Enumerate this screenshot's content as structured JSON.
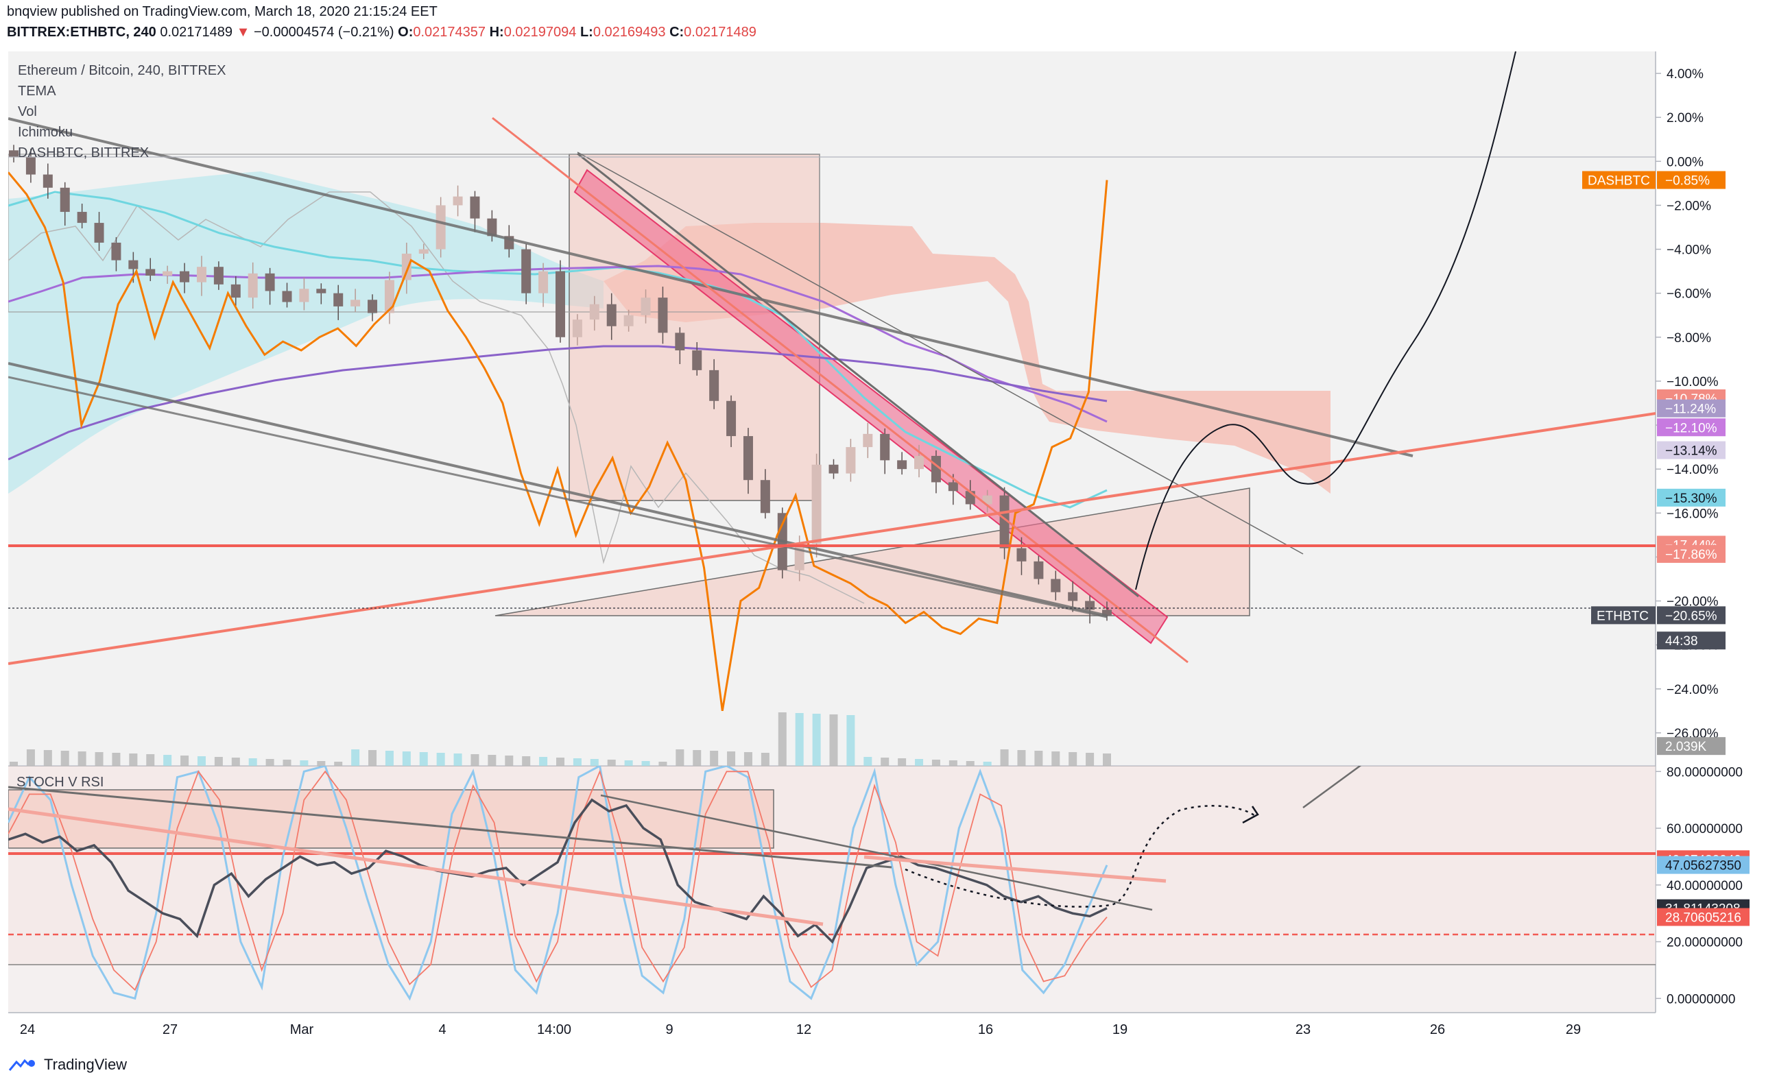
{
  "header": {
    "published": "bnqview published on TradingView.com, March 18, 2020 21:15:24 EET",
    "symbol": "BITTREX:ETHBTC, 240",
    "price": "0.02171489",
    "change": "−0.00004574 (−0.21%)",
    "o_label": "O:",
    "o": "0.02174357",
    "h_label": "H:",
    "h": "0.02197094",
    "l_label": "L:",
    "l": "0.02169493",
    "c_label": "C:",
    "c": "0.02171489"
  },
  "legend": [
    "Ethereum / Bitcoin, 240, BITTREX",
    "TEMA",
    "Vol",
    "Ichimoku",
    "DASHBTC, BITTREX"
  ],
  "lower_pane_label": "STOCH V RSI",
  "footer": {
    "brand": "TradingView"
  },
  "colors": {
    "up": "#d7bdb8",
    "down": "#7f6f6f",
    "orange": "#f57c00",
    "salmon": "#f28b82",
    "cyan": "#6fd6e0",
    "purple": "#a46bd8",
    "pink": "#ee5f8a"
  },
  "chart_data": [
    {
      "type": "line",
      "title": "Ethereum / Bitcoin, 240, BITTREX",
      "y_axis_unit": "%",
      "y_ticks": [
        "4.00%",
        "2.00%",
        "0.00%",
        "−2.00%",
        "−4.00%",
        "−6.00%",
        "−8.00%",
        "−10.00%",
        "−12.00%",
        "−14.00%",
        "−16.00%",
        "−18.00%",
        "−20.00%",
        "−22.00%",
        "−24.00%",
        "−26.00%"
      ],
      "y_tick_values": [
        4,
        2,
        0,
        -2,
        -4,
        -6,
        -8,
        -10,
        -12,
        -14,
        -16,
        -18,
        -20,
        -22,
        -24,
        -26
      ],
      "ylim": [
        -27.5,
        5
      ],
      "x_ticks": [
        "24",
        "27",
        "Mar",
        "4",
        "14:00",
        "9",
        "12",
        "16",
        "19",
        "23",
        "26",
        "29"
      ],
      "price_tags": [
        {
          "label": "DASHBTC",
          "value": "−0.85%",
          "y": -0.85,
          "color": "#f57c00"
        },
        {
          "label": "",
          "value": "−10.78%",
          "y": -10.78,
          "color": "#f28b82"
        },
        {
          "label": "",
          "value": "−11.24%",
          "y": -11.24,
          "color": "#a899c8"
        },
        {
          "label": "",
          "value": "−12.10%",
          "y": -12.1,
          "color": "#c77ae0"
        },
        {
          "label": "",
          "value": "−13.14%",
          "y": -13.14,
          "color": "#d8d0e8"
        },
        {
          "label": "",
          "value": "−15.30%",
          "y": -15.3,
          "color": "#7ed3e6"
        },
        {
          "label": "",
          "value": "−17.44%",
          "y": -17.44,
          "color": "#f28b82"
        },
        {
          "label": "",
          "value": "−17.86%",
          "y": -17.86,
          "color": "#f28b82"
        },
        {
          "label": "ETHBTC",
          "value": "−20.65%",
          "y": -20.65,
          "color": "#4a4e5a"
        },
        {
          "label": "",
          "value": "44:38",
          "y": -21.8,
          "color": "#4a4e5a"
        },
        {
          "label": "",
          "value": "2.039K",
          "y": -26.6,
          "color": "#9e9e9e"
        }
      ],
      "series": [
        {
          "name": "ETHBTC",
          "values": [
            0.2,
            -0.6,
            -1.2,
            -2.3,
            -2.8,
            -3.7,
            -4.5,
            -4.9,
            -5.2,
            -5.0,
            -5.5,
            -4.8,
            -5.6,
            -6.2,
            -5.1,
            -5.9,
            -6.4,
            -5.8,
            -6.0,
            -6.6,
            -6.3,
            -6.9,
            -5.4,
            -4.2,
            -4.0,
            -2.0,
            -1.6,
            -2.6,
            -3.4,
            -4.0,
            -6.0,
            -5.0,
            -8.0,
            -7.2,
            -6.5,
            -7.5,
            -7.0,
            -6.2,
            -7.8,
            -8.6,
            -9.5,
            -10.9,
            -12.5,
            -14.5,
            -16.0,
            -18.6,
            -17.4,
            -13.8,
            -14.2,
            -13.0,
            -12.4,
            -13.6,
            -14.0,
            -13.4,
            -14.6,
            -15.0,
            -15.6,
            -15.2,
            -17.6,
            -18.2,
            -19.0,
            -19.6,
            -20.0,
            -20.4,
            -20.65
          ]
        },
        {
          "name": "DASHBTC",
          "values": [
            -0.5,
            -1.5,
            -3.0,
            -5.5,
            -12.0,
            -10.0,
            -6.5,
            -5.0,
            -8.0,
            -5.5,
            -7.0,
            -8.5,
            -6.0,
            -7.5,
            -8.8,
            -8.2,
            -8.6,
            -8.0,
            -7.6,
            -8.4,
            -7.4,
            -6.6,
            -4.5,
            -5.0,
            -6.8,
            -8.0,
            -9.4,
            -11.0,
            -14.2,
            -16.5,
            -14.0,
            -17.0,
            -15.0,
            -13.5,
            -16.0,
            -14.8,
            -12.8,
            -14.5,
            -18.5,
            -25.0,
            -20.0,
            -19.4,
            -17.0,
            -15.2,
            -18.4,
            -18.8,
            -19.2,
            -19.8,
            -20.2,
            -21.0,
            -20.5,
            -21.2,
            -21.5,
            -20.8,
            -21.0,
            -16.0,
            -15.6,
            -13.0,
            -12.6,
            -10.5,
            -0.85
          ]
        }
      ]
    },
    {
      "type": "line",
      "title": "STOCH V RSI",
      "y_ticks": [
        "80.00000000",
        "60.00000000",
        "40.00000000",
        "20.00000000",
        "0.00000000"
      ],
      "y_tick_values": [
        80,
        60,
        40,
        20,
        0
      ],
      "ylim": [
        -5,
        82
      ],
      "price_tags": [
        {
          "value": "49.07432949",
          "y": 49.07,
          "color": "#f25c54"
        },
        {
          "value": "47.05627350",
          "y": 47.06,
          "color": "#7ec0ea"
        },
        {
          "value": "31.81143208",
          "y": 31.81,
          "color": "#2a2e39"
        },
        {
          "value": "28.70605216",
          "y": 28.71,
          "color": "#f25c54"
        }
      ],
      "series": [
        {
          "name": "RSI",
          "values": [
            56,
            58,
            55,
            57,
            52,
            54,
            48,
            38,
            34,
            30,
            28,
            22,
            40,
            44,
            36,
            42,
            46,
            50,
            47,
            48,
            44,
            46,
            52,
            50,
            47,
            45,
            44,
            43,
            45,
            46,
            40,
            44,
            48,
            62,
            70,
            66,
            68,
            60,
            56,
            40,
            34,
            32,
            30,
            28,
            36,
            30,
            22,
            26,
            20,
            32,
            46,
            48,
            50,
            47,
            46,
            44,
            42,
            40,
            36,
            34,
            36,
            32,
            30,
            29,
            31.8
          ]
        },
        {
          "name": "Stoch K",
          "values": [
            62,
            78,
            70,
            40,
            15,
            2,
            0,
            30,
            78,
            80,
            60,
            20,
            4,
            50,
            80,
            82,
            60,
            35,
            12,
            0,
            20,
            65,
            80,
            50,
            10,
            2,
            30,
            78,
            82,
            40,
            8,
            2,
            28,
            80,
            82,
            78,
            40,
            6,
            0,
            18,
            60,
            80,
            40,
            12,
            20,
            60,
            80,
            60,
            10,
            2,
            12,
            30,
            47
          ]
        },
        {
          "name": "Stoch D",
          "values": [
            58,
            72,
            72,
            52,
            28,
            10,
            3,
            20,
            60,
            80,
            70,
            35,
            10,
            30,
            70,
            80,
            70,
            45,
            20,
            5,
            12,
            50,
            75,
            62,
            22,
            6,
            20,
            62,
            80,
            55,
            18,
            6,
            18,
            65,
            80,
            80,
            55,
            18,
            4,
            10,
            45,
            75,
            55,
            20,
            15,
            45,
            72,
            68,
            22,
            6,
            8,
            20,
            28.7
          ]
        }
      ]
    }
  ]
}
